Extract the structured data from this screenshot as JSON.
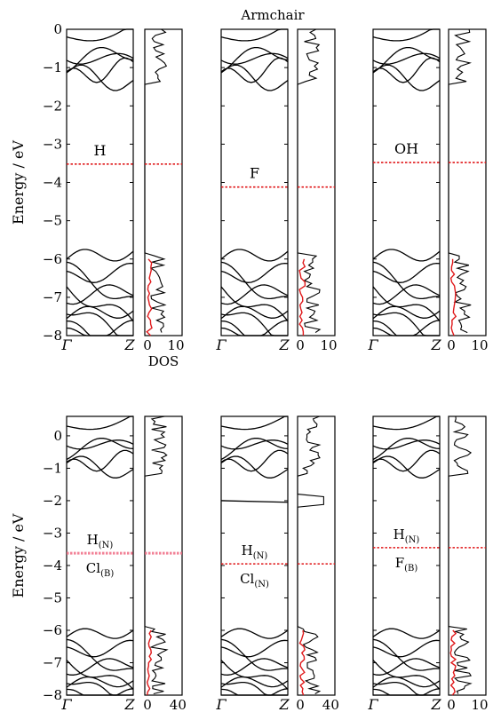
{
  "figure_title": "Armchair",
  "chart_data": [
    {
      "type": "line",
      "name": "top",
      "ylabel": "Energy / eV",
      "yticks": [
        "0",
        "−1",
        "−2",
        "−3",
        "−4",
        "−5",
        "−6",
        "−7",
        "−8"
      ],
      "ylim": [
        -8,
        0
      ],
      "band_xticks": [
        "Γ",
        "Z"
      ],
      "dos_xlabel": "DOS",
      "panels": [
        {
          "label": [
            "H"
          ],
          "fermi": -3.52,
          "dos_xticks": [
            "0",
            "10"
          ],
          "dos_xlim": [
            0,
            12
          ]
        },
        {
          "label": [
            "F"
          ],
          "fermi": -4.12,
          "dos_xticks": [
            "0",
            "10"
          ],
          "dos_xlim": [
            0,
            12
          ]
        },
        {
          "label": [
            "OH"
          ],
          "fermi": -3.48,
          "dos_xticks": [
            "0",
            "10"
          ],
          "dos_xlim": [
            0,
            12
          ]
        }
      ]
    },
    {
      "type": "line",
      "name": "bottom",
      "ylabel": "Energy / eV",
      "yticks": [
        "0",
        "−1",
        "−2",
        "−3",
        "−4",
        "−5",
        "−6",
        "−7",
        "−8"
      ],
      "ylim": [
        -8,
        0.6
      ],
      "band_xticks": [
        "Γ",
        "Z"
      ],
      "panels": [
        {
          "label": [
            "H(N)",
            "Cl(B)"
          ],
          "fermi": -3.62,
          "dos_xticks": [
            "0",
            "40"
          ],
          "dos_xlim": [
            0,
            45
          ]
        },
        {
          "label": [
            "H(N)",
            "Cl(N)"
          ],
          "fermi": -3.95,
          "dos_xticks": [
            "0",
            "40"
          ],
          "dos_xlim": [
            0,
            45
          ]
        },
        {
          "label": [
            "H(N)",
            "F(B)"
          ],
          "fermi": -3.45,
          "dos_xticks": [
            "0",
            "10"
          ],
          "dos_xlim": [
            0,
            12
          ]
        }
      ]
    }
  ],
  "colors": {
    "fermi": "#e0191b",
    "band": "#000000"
  }
}
